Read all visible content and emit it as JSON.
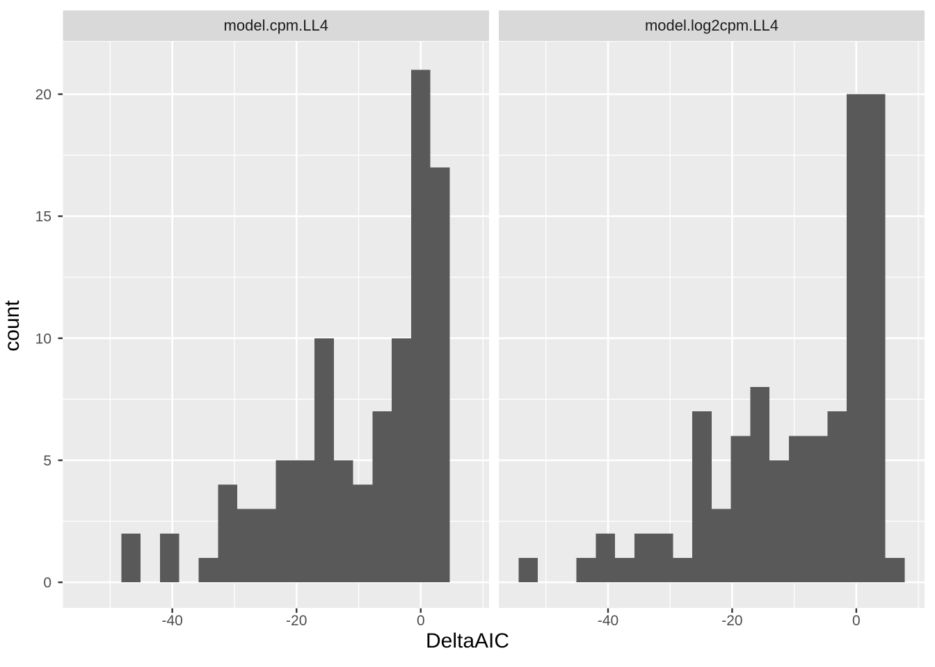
{
  "chart_data": {
    "type": "bar",
    "subtype": "faceted-histogram",
    "xlabel": "DeltaAIC",
    "ylabel": "count",
    "bin_start": -54.42,
    "bin_width": 3.11,
    "facets": [
      {
        "label": "model.cpm.LL4",
        "counts": [
          0,
          0,
          2,
          0,
          2,
          0,
          1,
          4,
          3,
          3,
          5,
          5,
          10,
          5,
          4,
          7,
          10,
          21,
          17,
          0
        ]
      },
      {
        "label": "model.log2cpm.LL4",
        "counts": [
          1,
          0,
          0,
          1,
          2,
          1,
          2,
          2,
          1,
          7,
          3,
          6,
          8,
          5,
          6,
          6,
          7,
          20,
          20,
          1
        ]
      }
    ],
    "x_ticks": [
      -40,
      -20,
      0
    ],
    "x_minor_gridlines": [
      -50,
      -30,
      -10,
      10
    ],
    "y_ticks": [
      0,
      5,
      10,
      15,
      20
    ],
    "y_minor_gridlines": [
      2.5,
      7.5,
      12.5,
      17.5
    ],
    "x_domain": [
      -57.6,
      11.0
    ],
    "y_domain": [
      -1.05,
      22.15
    ],
    "grid": "on",
    "legend_position": "none",
    "colors": {
      "bar": "#595959",
      "panel_background": "#EBEBEB",
      "strip_background": "#D9D9D9",
      "gridline": "#FFFFFF",
      "axis_text": "#4D4D4D",
      "tick_mark": "#333333",
      "strip_text": "#1A1A1A",
      "axis_title": "#000000",
      "figure_background": "#FFFFFF"
    }
  }
}
